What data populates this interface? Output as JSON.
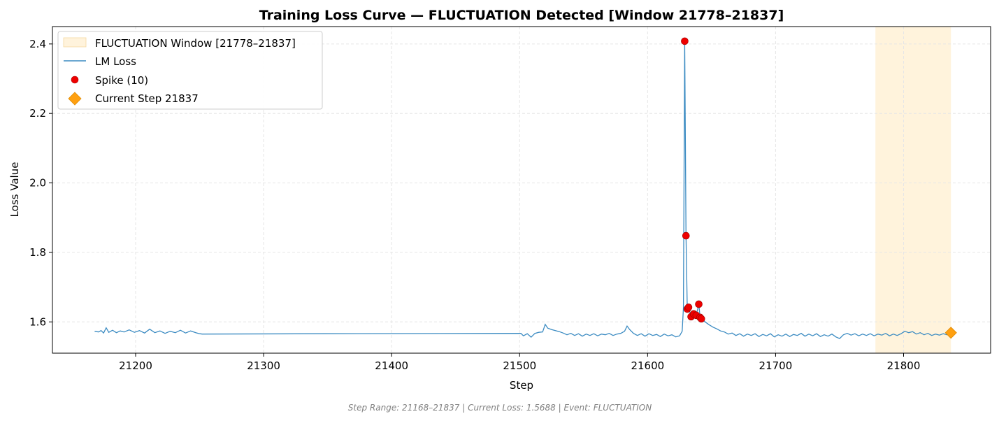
{
  "chart_data": {
    "type": "line",
    "title": "Training Loss Curve — FLUCTUATION Detected [Window 21778–21837]",
    "xlabel": "Step",
    "ylabel": "Loss Value",
    "xlim": [
      21135,
      21868
    ],
    "ylim": [
      1.51,
      2.45
    ],
    "x_ticks": [
      21200,
      21300,
      21400,
      21500,
      21600,
      21700,
      21800
    ],
    "y_ticks": [
      1.6,
      1.8,
      2.0,
      2.2,
      2.4
    ],
    "x_tick_labels": [
      "21200",
      "21300",
      "21400",
      "21500",
      "21600",
      "21700",
      "21800"
    ],
    "y_tick_labels": [
      "1.6",
      "1.8",
      "2.0",
      "2.2",
      "2.4"
    ],
    "grid": true,
    "legend_position": "top-left",
    "window": {
      "start": 21778,
      "end": 21837,
      "label": "FLUCTUATION Window [21778–21837]",
      "color": "#fff3dc"
    },
    "series": [
      {
        "name": "LM Loss",
        "color": "#3b8bc2",
        "points": [
          [
            21168,
            1.573
          ],
          [
            21171,
            1.571
          ],
          [
            21173,
            1.575
          ],
          [
            21175,
            1.568
          ],
          [
            21177,
            1.583
          ],
          [
            21179,
            1.57
          ],
          [
            21182,
            1.576
          ],
          [
            21185,
            1.569
          ],
          [
            21188,
            1.574
          ],
          [
            21191,
            1.571
          ],
          [
            21195,
            1.577
          ],
          [
            21199,
            1.57
          ],
          [
            21203,
            1.575
          ],
          [
            21207,
            1.568
          ],
          [
            21211,
            1.579
          ],
          [
            21215,
            1.569
          ],
          [
            21219,
            1.574
          ],
          [
            21223,
            1.567
          ],
          [
            21227,
            1.573
          ],
          [
            21231,
            1.569
          ],
          [
            21235,
            1.576
          ],
          [
            21239,
            1.568
          ],
          [
            21243,
            1.574
          ],
          [
            21247,
            1.569
          ],
          [
            21250,
            1.566
          ],
          [
            21252,
            1.565
          ],
          [
            21350,
            1.566
          ],
          [
            21501,
            1.567
          ],
          [
            21503,
            1.56
          ],
          [
            21506,
            1.566
          ],
          [
            21509,
            1.556
          ],
          [
            21512,
            1.567
          ],
          [
            21515,
            1.57
          ],
          [
            21518,
            1.571
          ],
          [
            21520,
            1.593
          ],
          [
            21522,
            1.582
          ],
          [
            21525,
            1.578
          ],
          [
            21528,
            1.575
          ],
          [
            21531,
            1.572
          ],
          [
            21534,
            1.568
          ],
          [
            21537,
            1.563
          ],
          [
            21540,
            1.567
          ],
          [
            21543,
            1.561
          ],
          [
            21546,
            1.566
          ],
          [
            21549,
            1.559
          ],
          [
            21552,
            1.565
          ],
          [
            21555,
            1.561
          ],
          [
            21558,
            1.566
          ],
          [
            21561,
            1.56
          ],
          [
            21564,
            1.565
          ],
          [
            21567,
            1.563
          ],
          [
            21570,
            1.567
          ],
          [
            21573,
            1.561
          ],
          [
            21576,
            1.565
          ],
          [
            21579,
            1.567
          ],
          [
            21582,
            1.573
          ],
          [
            21584,
            1.588
          ],
          [
            21586,
            1.578
          ],
          [
            21589,
            1.567
          ],
          [
            21592,
            1.561
          ],
          [
            21595,
            1.566
          ],
          [
            21598,
            1.559
          ],
          [
            21601,
            1.566
          ],
          [
            21604,
            1.561
          ],
          [
            21607,
            1.564
          ],
          [
            21610,
            1.558
          ],
          [
            21613,
            1.565
          ],
          [
            21616,
            1.56
          ],
          [
            21619,
            1.563
          ],
          [
            21622,
            1.557
          ],
          [
            21625,
            1.56
          ],
          [
            21627,
            1.573
          ],
          [
            21628,
            1.64
          ],
          [
            21629,
            2.408
          ],
          [
            21630,
            1.848
          ],
          [
            21631,
            1.637
          ],
          [
            21632,
            1.642
          ],
          [
            21634,
            1.615
          ],
          [
            21636,
            1.623
          ],
          [
            21638,
            1.619
          ],
          [
            21640,
            1.651
          ],
          [
            21641,
            1.613
          ],
          [
            21642,
            1.609
          ],
          [
            21645,
            1.6
          ],
          [
            21648,
            1.592
          ],
          [
            21651,
            1.585
          ],
          [
            21654,
            1.58
          ],
          [
            21657,
            1.574
          ],
          [
            21660,
            1.571
          ],
          [
            21663,
            1.565
          ],
          [
            21666,
            1.568
          ],
          [
            21669,
            1.561
          ],
          [
            21672,
            1.566
          ],
          [
            21675,
            1.559
          ],
          [
            21678,
            1.565
          ],
          [
            21681,
            1.561
          ],
          [
            21684,
            1.566
          ],
          [
            21687,
            1.558
          ],
          [
            21690,
            1.564
          ],
          [
            21693,
            1.56
          ],
          [
            21696,
            1.566
          ],
          [
            21699,
            1.557
          ],
          [
            21702,
            1.563
          ],
          [
            21705,
            1.559
          ],
          [
            21708,
            1.565
          ],
          [
            21711,
            1.558
          ],
          [
            21714,
            1.564
          ],
          [
            21717,
            1.561
          ],
          [
            21720,
            1.567
          ],
          [
            21723,
            1.559
          ],
          [
            21726,
            1.565
          ],
          [
            21729,
            1.56
          ],
          [
            21732,
            1.566
          ],
          [
            21735,
            1.558
          ],
          [
            21738,
            1.563
          ],
          [
            21741,
            1.559
          ],
          [
            21744,
            1.565
          ],
          [
            21747,
            1.557
          ],
          [
            21750,
            1.552
          ],
          [
            21753,
            1.563
          ],
          [
            21756,
            1.567
          ],
          [
            21759,
            1.562
          ],
          [
            21762,
            1.566
          ],
          [
            21765,
            1.56
          ],
          [
            21768,
            1.565
          ],
          [
            21771,
            1.561
          ],
          [
            21774,
            1.566
          ],
          [
            21777,
            1.56
          ],
          [
            21780,
            1.565
          ],
          [
            21783,
            1.562
          ],
          [
            21786,
            1.567
          ],
          [
            21789,
            1.56
          ],
          [
            21792,
            1.565
          ],
          [
            21795,
            1.561
          ],
          [
            21798,
            1.566
          ],
          [
            21801,
            1.573
          ],
          [
            21804,
            1.569
          ],
          [
            21807,
            1.572
          ],
          [
            21810,
            1.565
          ],
          [
            21813,
            1.569
          ],
          [
            21816,
            1.563
          ],
          [
            21819,
            1.567
          ],
          [
            21822,
            1.561
          ],
          [
            21825,
            1.565
          ],
          [
            21828,
            1.562
          ],
          [
            21831,
            1.566
          ],
          [
            21834,
            1.563
          ],
          [
            21837,
            1.569
          ]
        ]
      }
    ],
    "spikes": {
      "name": "Spike (10)",
      "color": "#ee0000",
      "points": [
        [
          21629,
          2.408
        ],
        [
          21630,
          1.848
        ],
        [
          21631,
          1.637
        ],
        [
          21632,
          1.642
        ],
        [
          21634,
          1.615
        ],
        [
          21636,
          1.623
        ],
        [
          21638,
          1.619
        ],
        [
          21640,
          1.651
        ],
        [
          21641,
          1.613
        ],
        [
          21642,
          1.609
        ]
      ]
    },
    "current_step": {
      "name": "Current Step 21837",
      "x": 21837,
      "y": 1.5688,
      "color": "#ffa010"
    },
    "footer": "Step Range: 21168–21837 | Current Loss: 1.5688 | Event: FLUCTUATION"
  }
}
